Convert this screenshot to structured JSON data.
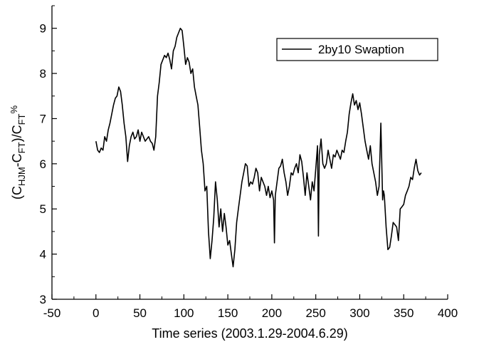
{
  "chart_data": {
    "type": "line",
    "xlabel": "Time series (2003.1.29-2004.6.29)",
    "ylabel": {
      "prefix": "(C",
      "sub1": "HJM",
      "mid1": "-C",
      "sub2": "FT",
      "mid2": ")/C",
      "sub3": "FT",
      "suffix": "%"
    },
    "xlim": [
      -50,
      400
    ],
    "ylim": [
      3,
      9.5
    ],
    "xticks": [
      -50,
      0,
      50,
      100,
      150,
      200,
      250,
      300,
      350,
      400
    ],
    "yticks": [
      3,
      4,
      5,
      6,
      7,
      8,
      9
    ],
    "grid": false,
    "legend": {
      "position": "top-right",
      "entries": [
        "2by10 Swaption"
      ]
    },
    "series": [
      {
        "name": "2by10 Swaption",
        "color": "#000000",
        "x": [
          0,
          2,
          4,
          6,
          8,
          10,
          12,
          14,
          16,
          18,
          20,
          22,
          24,
          26,
          28,
          30,
          32,
          34,
          36,
          38,
          40,
          42,
          44,
          46,
          48,
          50,
          52,
          54,
          56,
          58,
          60,
          62,
          64,
          66,
          68,
          70,
          72,
          74,
          76,
          78,
          80,
          82,
          84,
          86,
          88,
          90,
          92,
          94,
          96,
          98,
          100,
          102,
          104,
          106,
          108,
          110,
          112,
          114,
          116,
          118,
          120,
          122,
          124,
          126,
          128,
          130,
          132,
          134,
          136,
          138,
          140,
          142,
          144,
          146,
          148,
          150,
          152,
          154,
          156,
          158,
          160,
          162,
          164,
          166,
          168,
          170,
          172,
          174,
          176,
          178,
          180,
          182,
          184,
          186,
          188,
          190,
          192,
          194,
          196,
          198,
          200,
          202,
          203,
          204,
          206,
          208,
          210,
          212,
          214,
          216,
          218,
          220,
          222,
          224,
          226,
          228,
          230,
          232,
          234,
          236,
          238,
          240,
          242,
          244,
          246,
          248,
          250,
          252,
          253,
          254,
          256,
          258,
          260,
          262,
          264,
          266,
          268,
          270,
          272,
          274,
          276,
          278,
          280,
          282,
          284,
          286,
          288,
          290,
          292,
          294,
          296,
          298,
          300,
          302,
          304,
          306,
          308,
          310,
          312,
          314,
          316,
          318,
          320,
          322,
          324,
          326,
          327,
          328,
          330,
          332,
          334,
          336,
          338,
          340,
          342,
          344,
          346,
          348,
          350,
          352,
          354,
          356,
          358,
          360,
          362,
          364,
          366,
          368,
          370
        ],
        "y": [
          6.5,
          6.3,
          6.25,
          6.35,
          6.3,
          6.6,
          6.5,
          6.75,
          6.9,
          7.1,
          7.3,
          7.45,
          7.5,
          7.7,
          7.6,
          7.3,
          6.9,
          6.6,
          6.05,
          6.4,
          6.6,
          6.7,
          6.55,
          6.6,
          6.75,
          6.5,
          6.7,
          6.6,
          6.5,
          6.55,
          6.6,
          6.5,
          6.45,
          6.3,
          6.6,
          7.5,
          7.8,
          8.2,
          8.3,
          8.4,
          8.35,
          8.45,
          8.3,
          8.1,
          8.5,
          8.6,
          8.8,
          8.9,
          9.0,
          8.95,
          8.6,
          8.2,
          8.35,
          8.25,
          8.0,
          8.1,
          7.7,
          7.5,
          7.3,
          6.8,
          6.3,
          6.0,
          5.4,
          5.5,
          4.5,
          3.9,
          4.3,
          4.8,
          5.6,
          5.2,
          4.6,
          5.0,
          4.5,
          4.9,
          4.6,
          4.2,
          4.3,
          4.0,
          3.72,
          4.1,
          4.7,
          5.0,
          5.3,
          5.6,
          5.8,
          6.0,
          5.95,
          5.5,
          5.6,
          5.55,
          5.7,
          5.9,
          5.8,
          5.4,
          5.7,
          5.6,
          5.5,
          5.3,
          5.5,
          5.25,
          5.4,
          5.2,
          4.25,
          5.3,
          5.6,
          5.9,
          5.95,
          6.1,
          5.8,
          5.6,
          5.3,
          5.5,
          5.8,
          5.75,
          5.9,
          6.0,
          5.8,
          6.2,
          6.05,
          5.7,
          5.3,
          5.8,
          5.5,
          5.2,
          5.6,
          5.4,
          5.9,
          6.4,
          4.4,
          6.2,
          6.55,
          6.0,
          5.9,
          6.0,
          6.3,
          6.1,
          5.9,
          6.2,
          6.15,
          6.3,
          6.2,
          6.1,
          6.3,
          6.25,
          6.5,
          6.7,
          7.1,
          7.35,
          7.55,
          7.3,
          7.4,
          7.2,
          7.35,
          7.1,
          6.8,
          6.5,
          6.3,
          6.1,
          6.4,
          6.0,
          5.8,
          5.6,
          5.3,
          5.5,
          6.9,
          5.2,
          5.4,
          5.3,
          4.6,
          4.1,
          4.15,
          4.4,
          4.7,
          4.65,
          4.6,
          4.3,
          5.0,
          5.05,
          5.1,
          5.3,
          5.4,
          5.5,
          5.7,
          5.65,
          5.9,
          6.1,
          5.85,
          5.75,
          5.8
        ]
      }
    ]
  }
}
